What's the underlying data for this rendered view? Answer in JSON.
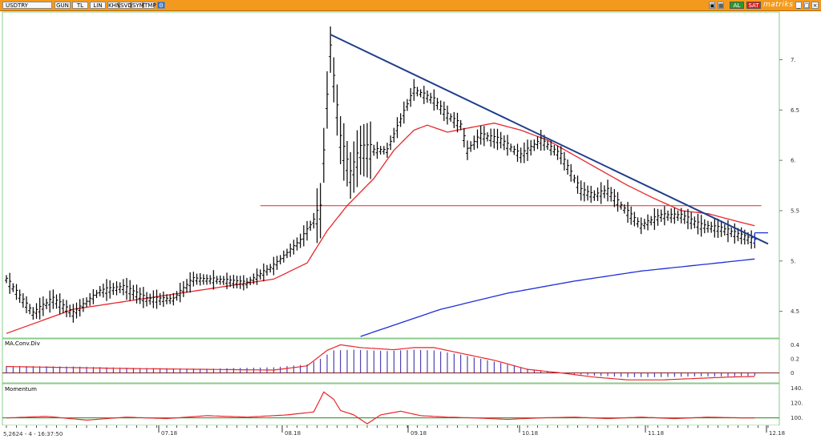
{
  "window": {
    "symbol": "USDTRY",
    "toolbar_buttons": [
      "GUN",
      "TL",
      "LIN",
      "KHN",
      "SVD",
      "SYM",
      "TMP"
    ],
    "right_buttons": [
      "AL",
      "SAT"
    ],
    "brand": "matriks",
    "status_text": "5,2624 - 4 - 16:37:50"
  },
  "panels": {
    "macd_label": "MA.Conv.Div",
    "momentum_label": "Momentum"
  },
  "colors": {
    "titlebar": "#f39a1e",
    "price_bars": "#000000",
    "ma_short": "#e8262a",
    "ma_long": "#1f2fd6",
    "trendline": "#1f3f8a",
    "support": "#e8262a",
    "macd_hist": "#2a1fa8",
    "signal": "#e8262a",
    "momentum_ref": "#1a8a1a",
    "panel_border": "#8acb8a",
    "buy_button": "#2a9a2a",
    "sell_button": "#d82020"
  },
  "chart_data": {
    "type": "bar",
    "title": "USDTRY",
    "x_ticks": [
      "07.18",
      "08.18",
      "09.18",
      "10.18",
      "11.18",
      "12.18"
    ],
    "price_axis": {
      "ticks": [
        "7.",
        "6.5",
        "6.",
        "5.5",
        "5.",
        "4.5"
      ],
      "values": [
        7.0,
        6.5,
        6.0,
        5.5,
        5.0,
        4.5
      ],
      "ylim": [
        4.25,
        7.45
      ]
    },
    "macd_axis": {
      "ticks": [
        "0.4",
        "0.2",
        "0"
      ],
      "values": [
        0.4,
        0.2,
        0.0
      ],
      "ylim": [
        -0.12,
        0.45
      ]
    },
    "momentum_axis": {
      "ticks": [
        "140.",
        "120.",
        "100."
      ],
      "values": [
        140,
        120,
        100
      ],
      "ylim": [
        92,
        144
      ]
    },
    "price_keypoints": [
      [
        0,
        4.82
      ],
      [
        8,
        4.48
      ],
      [
        14,
        4.62
      ],
      [
        20,
        4.48
      ],
      [
        28,
        4.7
      ],
      [
        35,
        4.74
      ],
      [
        42,
        4.62
      ],
      [
        50,
        4.62
      ],
      [
        56,
        4.82
      ],
      [
        64,
        4.81
      ],
      [
        72,
        4.78
      ],
      [
        80,
        4.95
      ],
      [
        88,
        5.2
      ],
      [
        94,
        5.5
      ],
      [
        96,
        6.6
      ],
      [
        97,
        7.1
      ],
      [
        100,
        6.2
      ],
      [
        103,
        5.85
      ],
      [
        106,
        6.1
      ],
      [
        114,
        6.1
      ],
      [
        118,
        6.4
      ],
      [
        122,
        6.7
      ],
      [
        128,
        6.6
      ],
      [
        132,
        6.45
      ],
      [
        136,
        6.35
      ],
      [
        138,
        6.1
      ],
      [
        142,
        6.25
      ],
      [
        148,
        6.2
      ],
      [
        154,
        6.05
      ],
      [
        160,
        6.2
      ],
      [
        166,
        6.05
      ],
      [
        172,
        5.7
      ],
      [
        176,
        5.65
      ],
      [
        180,
        5.7
      ],
      [
        184,
        5.55
      ],
      [
        190,
        5.35
      ],
      [
        196,
        5.45
      ],
      [
        202,
        5.45
      ],
      [
        208,
        5.35
      ],
      [
        214,
        5.32
      ],
      [
        220,
        5.25
      ],
      [
        224,
        5.2
      ]
    ],
    "ma_short_keypoints": [
      [
        0,
        4.28
      ],
      [
        20,
        4.52
      ],
      [
        40,
        4.62
      ],
      [
        60,
        4.72
      ],
      [
        80,
        4.82
      ],
      [
        90,
        4.98
      ],
      [
        96,
        5.3
      ],
      [
        102,
        5.55
      ],
      [
        110,
        5.82
      ],
      [
        116,
        6.1
      ],
      [
        122,
        6.3
      ],
      [
        126,
        6.35
      ],
      [
        132,
        6.28
      ],
      [
        138,
        6.32
      ],
      [
        146,
        6.37
      ],
      [
        154,
        6.3
      ],
      [
        162,
        6.2
      ],
      [
        170,
        6.05
      ],
      [
        178,
        5.9
      ],
      [
        186,
        5.75
      ],
      [
        194,
        5.62
      ],
      [
        202,
        5.5
      ],
      [
        210,
        5.47
      ],
      [
        218,
        5.4
      ],
      [
        224,
        5.35
      ]
    ],
    "ma_long_keypoints": [
      [
        106,
        4.25
      ],
      [
        130,
        4.52
      ],
      [
        150,
        4.68
      ],
      [
        170,
        4.8
      ],
      [
        190,
        4.9
      ],
      [
        210,
        4.97
      ],
      [
        224,
        5.02
      ]
    ],
    "trendline": [
      [
        97,
        7.25
      ],
      [
        228,
        5.17
      ]
    ],
    "support_level": {
      "value": 5.55,
      "from": 76,
      "to": 226
    },
    "blue_marker_level": 5.28,
    "macd_keypoints": [
      [
        0,
        0.1
      ],
      [
        20,
        0.09
      ],
      [
        40,
        0.07
      ],
      [
        60,
        0.06
      ],
      [
        80,
        0.08
      ],
      [
        90,
        0.12
      ],
      [
        94,
        0.2
      ],
      [
        98,
        0.32
      ],
      [
        104,
        0.33
      ],
      [
        114,
        0.31
      ],
      [
        122,
        0.33
      ],
      [
        128,
        0.32
      ],
      [
        136,
        0.26
      ],
      [
        146,
        0.16
      ],
      [
        156,
        0.06
      ],
      [
        166,
        0.0
      ],
      [
        176,
        -0.04
      ],
      [
        186,
        -0.06
      ],
      [
        196,
        -0.06
      ],
      [
        206,
        -0.05
      ],
      [
        216,
        -0.05
      ],
      [
        224,
        -0.04
      ]
    ],
    "signal_keypoints": [
      [
        0,
        0.09
      ],
      [
        40,
        0.06
      ],
      [
        80,
        0.04
      ],
      [
        90,
        0.1
      ],
      [
        96,
        0.32
      ],
      [
        100,
        0.4
      ],
      [
        106,
        0.36
      ],
      [
        116,
        0.33
      ],
      [
        122,
        0.36
      ],
      [
        128,
        0.36
      ],
      [
        136,
        0.28
      ],
      [
        146,
        0.18
      ],
      [
        156,
        0.05
      ],
      [
        166,
        0.0
      ],
      [
        176,
        -0.06
      ],
      [
        186,
        -0.1
      ],
      [
        196,
        -0.1
      ],
      [
        206,
        -0.08
      ],
      [
        216,
        -0.06
      ],
      [
        224,
        -0.05
      ]
    ],
    "momentum_keypoints": [
      [
        0,
        100
      ],
      [
        12,
        102
      ],
      [
        24,
        97
      ],
      [
        36,
        101
      ],
      [
        48,
        99
      ],
      [
        60,
        103
      ],
      [
        72,
        101
      ],
      [
        84,
        104
      ],
      [
        92,
        108
      ],
      [
        95,
        135
      ],
      [
        98,
        125
      ],
      [
        100,
        110
      ],
      [
        104,
        104
      ],
      [
        108,
        92
      ],
      [
        112,
        104
      ],
      [
        118,
        109
      ],
      [
        124,
        103
      ],
      [
        132,
        101
      ],
      [
        140,
        100
      ],
      [
        150,
        98
      ],
      [
        160,
        100
      ],
      [
        170,
        101
      ],
      [
        180,
        99
      ],
      [
        190,
        101
      ],
      [
        200,
        99
      ],
      [
        210,
        101
      ],
      [
        220,
        100
      ],
      [
        224,
        100
      ]
    ],
    "momentum_reference": 100,
    "n_bars": 229
  }
}
